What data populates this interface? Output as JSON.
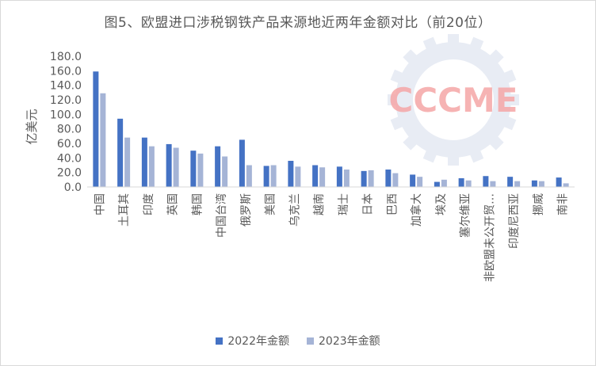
{
  "chart_data": {
    "type": "bar",
    "title": "图5、欧盟进口涉税钢铁产品来源地近两年金额对比（前20位）",
    "ylabel": "亿美元",
    "xlabel": "",
    "ylim": [
      0,
      180
    ],
    "yticks": [
      "0.0",
      "20.0",
      "40.0",
      "60.0",
      "80.0",
      "100.0",
      "120.0",
      "140.0",
      "160.0",
      "180.0"
    ],
    "grid": false,
    "legend_position": "bottom",
    "categories": [
      "中国",
      "土耳其",
      "印度",
      "英国",
      "韩国",
      "中国台湾",
      "俄罗斯",
      "美国",
      "乌克兰",
      "越南",
      "瑞士",
      "日本",
      "巴西",
      "加拿大",
      "埃及",
      "塞尔维亚",
      "非欧盟未公开贸…",
      "印度尼西亚",
      "挪威",
      "南非"
    ],
    "series": [
      {
        "name": "2022年金额",
        "color": "#4472c4",
        "values": [
          159,
          94,
          68,
          59,
          50,
          56,
          65,
          29,
          36,
          30,
          28,
          22,
          24,
          17,
          7,
          12,
          15,
          14,
          9,
          13
        ]
      },
      {
        "name": "2023年金额",
        "color": "#a5b4d6",
        "values": [
          129,
          68,
          56,
          54,
          46,
          42,
          30,
          30,
          28,
          27,
          24,
          23,
          19,
          14,
          10,
          9,
          8,
          8,
          8,
          5
        ]
      }
    ]
  },
  "watermark": {
    "text": "CCCME",
    "color": "#f4a6a6"
  }
}
